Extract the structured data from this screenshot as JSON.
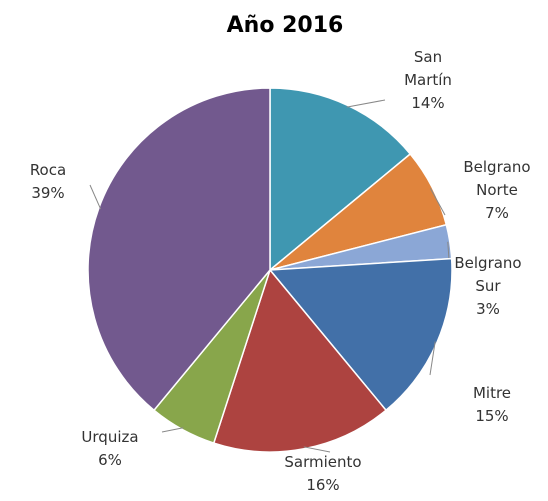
{
  "chart_data": {
    "type": "pie",
    "title": "Año 2016",
    "categories": [
      "San Martín",
      "Belgrano Norte",
      "Belgrano Sur",
      "Mitre",
      "Sarmiento",
      "Urquiza",
      "Roca"
    ],
    "values": [
      14,
      7,
      3,
      15,
      16,
      6,
      39
    ],
    "value_labels": [
      "14%",
      "7%",
      "3%",
      "15%",
      "16%",
      "6%",
      "39%"
    ],
    "colors": [
      "#3f97b1",
      "#e0843d",
      "#8ba7d6",
      "#4270a8",
      "#ad4340",
      "#88a64b",
      "#72598e"
    ]
  }
}
